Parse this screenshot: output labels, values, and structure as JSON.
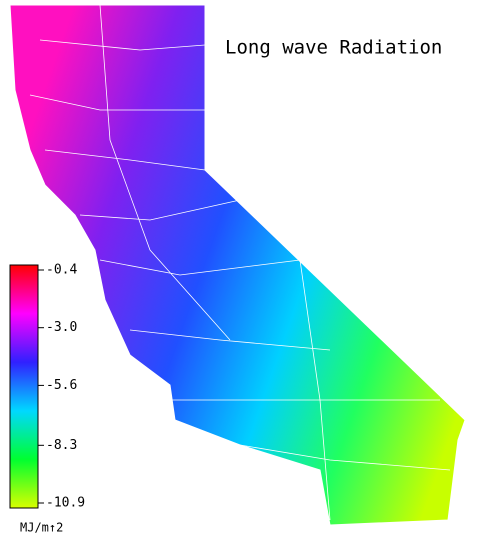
{
  "title": "Long wave Radiation",
  "colorbar": {
    "range": [
      -10.9,
      -0.4
    ],
    "ticks": [
      -0.4,
      {
        "value": -3,
        "label": "-3.0"
      },
      -5.6,
      -8.3,
      -10.9
    ],
    "unit": "MJ/m↑2",
    "colors": [
      "#ff0000",
      "#ff00ff",
      "#3020ff",
      "#00d8ff",
      "#00ff30",
      "#d8ff00"
    ]
  }
}
